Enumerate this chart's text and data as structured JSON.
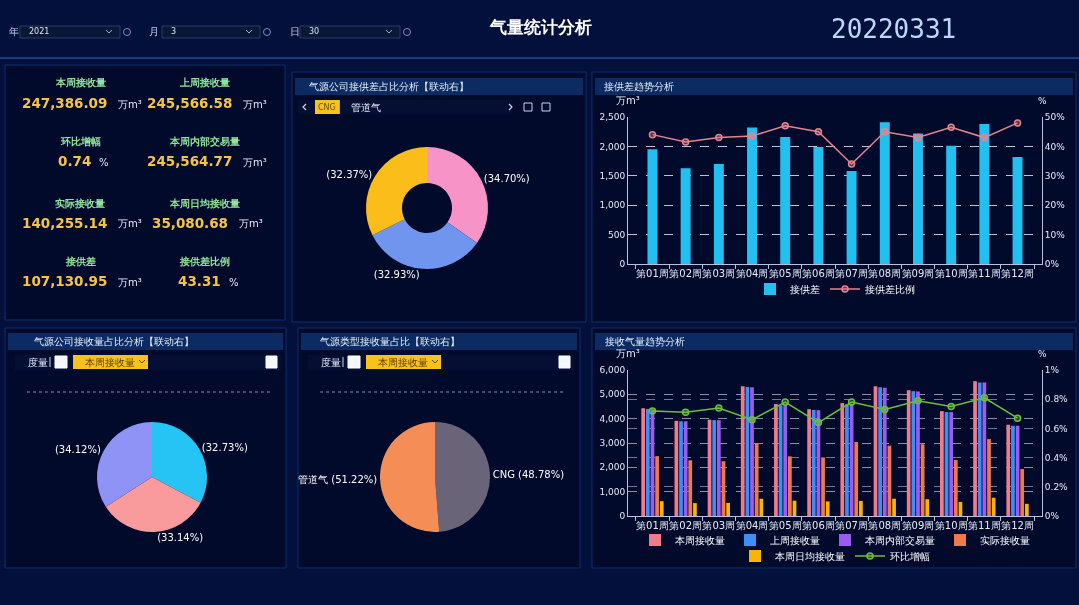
{
  "chart_data": [
    {
      "type": "other",
      "title": "气量统计分析",
      "annotations": [
        "年",
        "2021",
        "月",
        "3",
        "日",
        "30",
        "20220331"
      ]
    },
    {
      "type": "other",
      "annotations": [
        "本周接收量",
        "247,386.09",
        "万m³",
        "上周接收量",
        "245,566.58",
        "万m³",
        "环比增幅",
        "0.74",
        "%",
        "本周内部交易量",
        "245,564.77",
        "万m³",
        "实际接收量",
        "140,255.14",
        "万m³",
        "本周日均接收量",
        "35,080.68",
        "万m³",
        "接供差",
        "107,130.95",
        "万m³",
        "接供差比例",
        "43.31",
        "%"
      ]
    },
    {
      "type": "donut",
      "title": "气源公司接供差占比分析【联动右】",
      "annotations": [
        "CNG",
        "管道气"
      ],
      "categories": [
        null,
        null,
        null
      ],
      "values": [
        34.7,
        32.93,
        32.37
      ],
      "colors": [
        "#f893c8",
        "#6f95ef",
        "#fbbd1a"
      ],
      "value_labels": [
        "(34.70%)",
        "(32.93%)",
        "(32.37%)"
      ]
    },
    {
      "type": "bar",
      "title": "接供差趋势分析",
      "ylabel": "万m³",
      "y2label": "%",
      "categories": [
        "第01周",
        "第02周",
        "第03周",
        "第04周",
        "第05周",
        "第06周",
        "第07周",
        "第08周",
        "第09周",
        "第10周",
        "第11周",
        "第12周"
      ],
      "series": [
        {
          "name": "接供差",
          "color": "#22c0f0",
          "values": [
            1950,
            1630,
            1700,
            2320,
            2160,
            1990,
            1580,
            2410,
            2220,
            2010,
            2380,
            1820
          ]
        },
        {
          "name": "接供差比例",
          "type": "line",
          "axis": "y2",
          "marker": "circle",
          "color": "#e8838e",
          "values": [
            44,
            41.5,
            43,
            43.5,
            47,
            45,
            34,
            45,
            43,
            46.5,
            43,
            48
          ]
        }
      ],
      "ylim": [
        0,
        2500
      ],
      "yticks": [
        0,
        500,
        {
          "value": 1000,
          "label": "1,000"
        },
        {
          "value": 1500,
          "label": "1,500"
        },
        {
          "value": 2000,
          "label": "2,000"
        },
        {
          "value": 2500,
          "label": "2,500"
        }
      ],
      "y2lim": [
        0,
        50
      ],
      "y2ticks": [
        {
          "value": 0,
          "label": "0%"
        },
        {
          "value": 10,
          "label": "10%"
        },
        {
          "value": 20,
          "label": "20%"
        },
        {
          "value": 30,
          "label": "30%"
        },
        {
          "value": 40,
          "label": "40%"
        },
        {
          "value": 50,
          "label": "50%"
        }
      ],
      "grid": "y",
      "legend": "bottom"
    },
    {
      "type": "pie",
      "title": "气源公司接收量占比分析【联动右】",
      "annotations": [
        "度量",
        "本周接收量"
      ],
      "categories": [
        null,
        null,
        null
      ],
      "values": [
        32.73,
        33.14,
        34.12
      ],
      "colors": [
        "#26c4f4",
        "#f99a9c",
        "#8e93f5"
      ],
      "value_labels": [
        "(32.73%)",
        "(33.14%)",
        "(34.12%)"
      ]
    },
    {
      "type": "pie",
      "title": "气源类型接收量占比【联动右】",
      "annotations": [
        "度量",
        "本周接收量"
      ],
      "categories": [
        "CNG",
        "管道气"
      ],
      "values": [
        48.78,
        51.22
      ],
      "colors": [
        "#6a6478",
        "#f58d57"
      ],
      "value_labels": [
        "(48.78%)",
        "(51.22%)"
      ]
    },
    {
      "type": "bar",
      "title": "接收气量趋势分析",
      "ylabel": "万m³",
      "y2label": "%",
      "categories": [
        "第01周",
        "第02周",
        "第03周",
        "第04周",
        "第05周",
        "第06周",
        "第07周",
        "第08周",
        "第09周",
        "第10周",
        "第11周",
        "第12周"
      ],
      "series": [
        {
          "name": "本周接收量",
          "color": "#f27a8a",
          "values": [
            4430,
            3910,
            3960,
            5330,
            4600,
            4390,
            4640,
            5330,
            5170,
            4310,
            5540,
            3750
          ]
        },
        {
          "name": "上周接收量",
          "color": "#3e8ef7",
          "values": [
            4400,
            3890,
            3940,
            5300,
            4550,
            4360,
            4590,
            5290,
            5130,
            4270,
            5490,
            3710
          ]
        },
        {
          "name": "本周内部交易量",
          "color": "#9a5cf0",
          "values": [
            4390,
            3890,
            3940,
            5290,
            4560,
            4350,
            4600,
            5270,
            5120,
            4270,
            5490,
            3710
          ]
        },
        {
          "name": "实际接收量",
          "color": "#f0784a",
          "values": [
            2460,
            2290,
            2250,
            2990,
            2450,
            2410,
            3040,
            2890,
            2950,
            2300,
            3160,
            1930
          ]
        },
        {
          "name": "本周日均接收量",
          "color": "#f7b500",
          "values": [
            610,
            530,
            540,
            710,
            630,
            600,
            620,
            710,
            690,
            580,
            750,
            500
          ]
        },
        {
          "name": "环比增幅",
          "type": "line",
          "axis": "y2",
          "marker": "circle",
          "color": "#6cbf3c",
          "values": [
            0.72,
            0.71,
            0.74,
            0.66,
            0.78,
            0.64,
            0.78,
            0.73,
            0.79,
            0.75,
            0.81,
            0.67
          ]
        }
      ],
      "ylim": [
        0,
        6000
      ],
      "yticks": [
        0,
        {
          "value": 1000,
          "label": "1,000"
        },
        {
          "value": 2000,
          "label": "2,000"
        },
        {
          "value": 3000,
          "label": "3,000"
        },
        {
          "value": 4000,
          "label": "4,000"
        },
        {
          "value": 5000,
          "label": "5,000"
        },
        {
          "value": 6000,
          "label": "6,000"
        }
      ],
      "y2lim": [
        0,
        1
      ],
      "y2ticks": [
        {
          "value": 0,
          "label": "0%"
        },
        {
          "value": 0.2,
          "label": "0.2%"
        },
        {
          "value": 0.4,
          "label": "0.4%"
        },
        {
          "value": 0.6,
          "label": "0.6%"
        },
        {
          "value": 0.8,
          "label": "0.8%"
        },
        {
          "value": 1,
          "label": "1%"
        }
      ],
      "grid": "y",
      "legend": "bottom"
    }
  ]
}
